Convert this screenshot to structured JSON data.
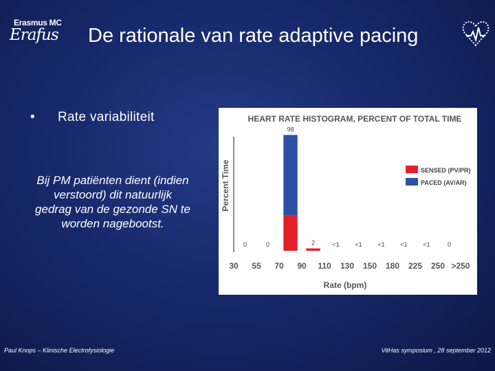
{
  "slide": {
    "title": "De rationale van rate adaptive pacing",
    "logo": {
      "brand": "Erasmus MC",
      "script": "Erafus"
    },
    "bullet": "Rate variabiliteit",
    "note": "Bij PM patiënten dient (indien verstoord) dit natuurlijk gedrag van de gezonde SN te worden nagebootst.",
    "footer_left": "Paul Knops – Klinische Electrofysiologie",
    "footer_right": "VitHas symposium , 28 september 2012"
  },
  "icons": {
    "heart": "heart-pulse-icon"
  },
  "chart_data": {
    "type": "bar",
    "title": "HEART RATE HISTOGRAM, PERCENT OF TOTAL TIME",
    "xlabel": "Rate (bpm)",
    "ylabel": "Percent Time",
    "x_ticks": [
      "30",
      "55",
      "70",
      "90",
      "110",
      "130",
      "150",
      "180",
      "225",
      "250",
      ">250"
    ],
    "categories": [
      "30-55",
      "55-70",
      "70-90",
      "90-110",
      "110-130",
      "130-150",
      "150-180",
      "180-225",
      "225-250",
      ">250"
    ],
    "series": [
      {
        "name": "SENSED (PV/PR)",
        "color": "#e2202a",
        "values": [
          0,
          0,
          30,
          2,
          0,
          0,
          0,
          0,
          0,
          0
        ]
      },
      {
        "name": "PACED (AV/AR)",
        "color": "#2e50a4",
        "values": [
          0,
          0,
          68,
          0,
          0,
          0,
          0,
          0,
          0,
          0
        ]
      }
    ],
    "data_labels": [
      "0",
      "0",
      "98",
      "2",
      "<1",
      "<1",
      "<1",
      "<1",
      "<1",
      "0"
    ],
    "ylim": [
      0,
      100
    ],
    "legend": "right",
    "grid": false
  }
}
